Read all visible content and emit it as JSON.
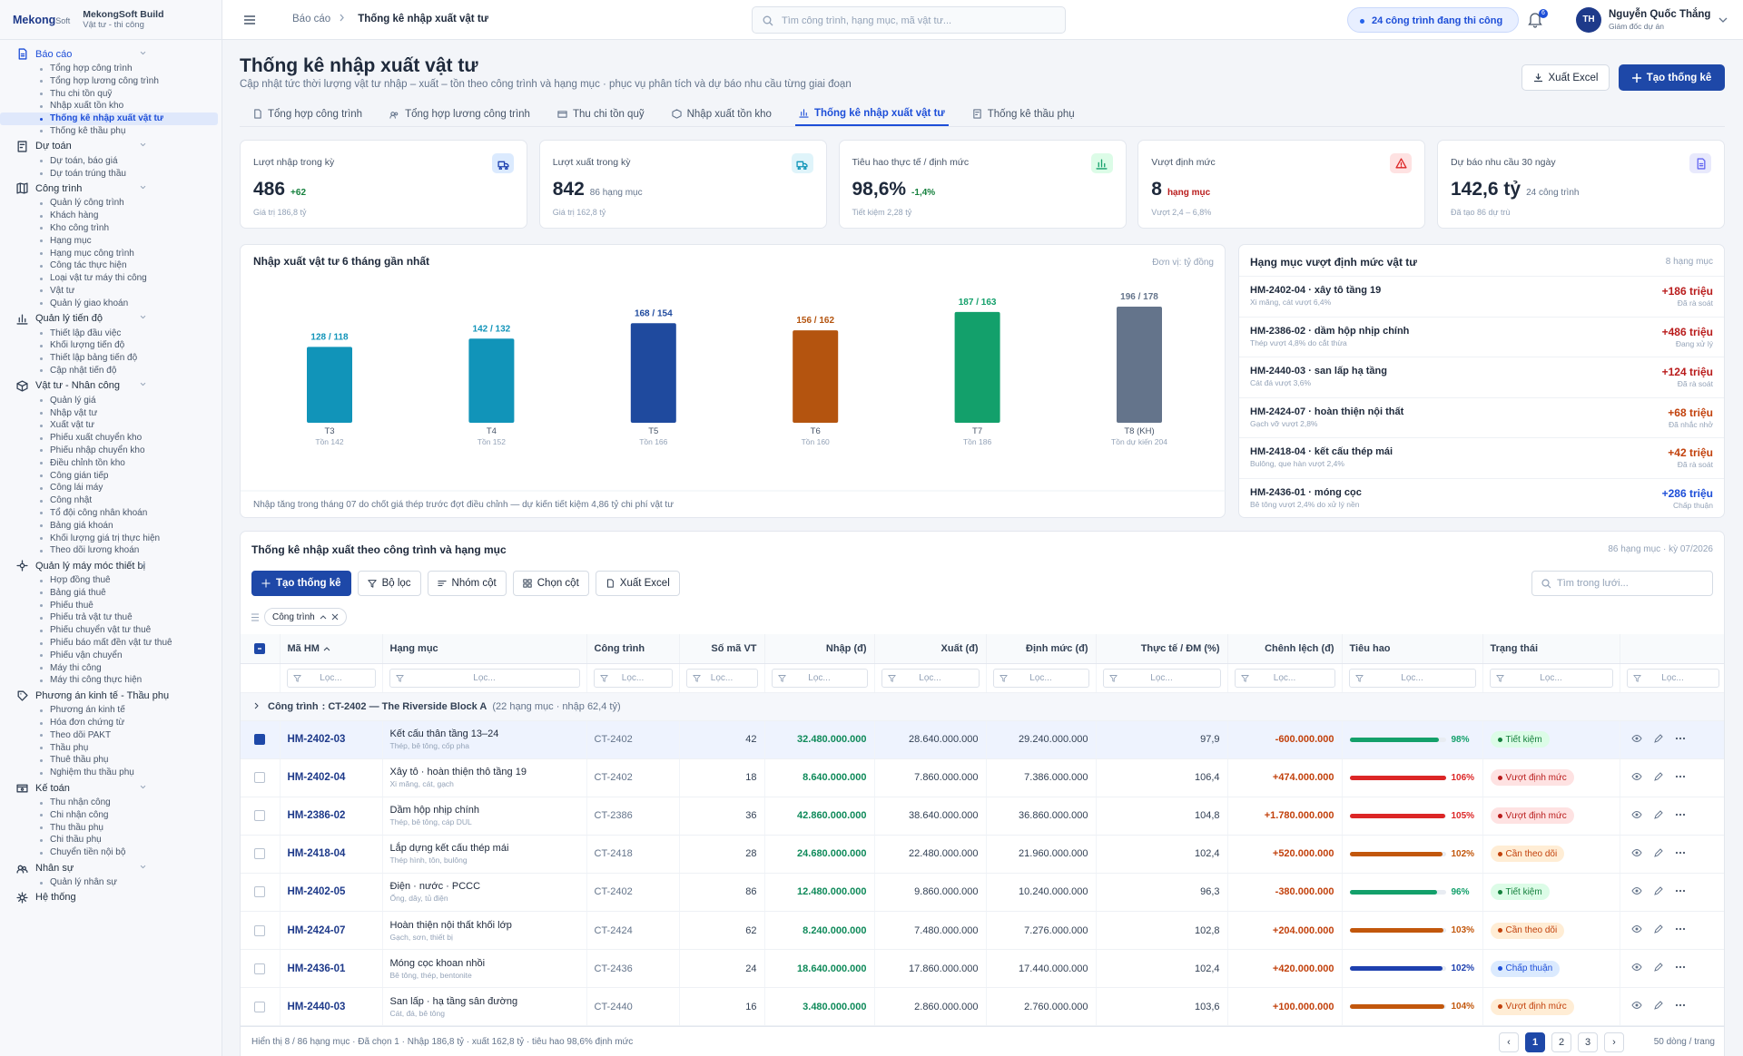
{
  "brand": {
    "logo_1": "Mekong",
    "logo_2": "Soft",
    "app": "MekongSoft Build",
    "tagline": "Vật tư - thi công"
  },
  "sidebar": {
    "active_group": 0,
    "active_item": 4,
    "groups": [
      {
        "label": "Báo cáo",
        "items": [
          "Tổng hợp công trình",
          "Tổng hợp lương công trình",
          "Thu chi tồn quỹ",
          "Nhập xuất tồn kho",
          "Thống kê nhập xuất vật tư",
          "Thống kê thầu phụ"
        ]
      },
      {
        "label": "Dự toán",
        "items": [
          "Dự toán, báo giá",
          "Dự toán trúng thầu"
        ]
      },
      {
        "label": "Công trình",
        "items": [
          "Quản lý công trình",
          "Khách hàng",
          "Kho công trình",
          "Hạng mục",
          "Hạng mục công trình",
          "Công tác thực hiện",
          "Loại vật tư máy thi công",
          "Vật tư",
          "Quản lý giao khoán"
        ]
      },
      {
        "label": "Quản lý tiến độ",
        "items": [
          "Thiết lập đầu việc",
          "Khối lượng tiến độ",
          "Thiết lập bảng tiến độ",
          "Cập nhật tiến độ"
        ]
      },
      {
        "label": "Vật tư - Nhân công",
        "items": [
          "Quản lý giá",
          "Nhập vật tư",
          "Xuất vật tư",
          "Phiếu xuất chuyển kho",
          "Phiếu nhập chuyển kho",
          "Điều chỉnh tồn kho",
          "Công gián tiếp",
          "Công lái máy",
          "Công nhật",
          "Tổ đội công nhân khoán",
          "Bảng giá khoán",
          "Khối lượng giá trị thực hiện",
          "Theo dõi lương khoán"
        ]
      },
      {
        "label": "Quản lý máy móc thiết bị",
        "items": [
          "Hợp đồng thuê",
          "Bảng giá thuê",
          "Phiếu thuê",
          "Phiếu trả vật tư thuê",
          "Phiếu chuyển vật tư thuê",
          "Phiếu báo mất đền vật tư thuê",
          "Phiếu vận chuyển",
          "Máy thi công",
          "Máy thi công thực hiện"
        ]
      },
      {
        "label": "Phương án kinh tế - Thầu phụ",
        "items": [
          "Phương án kinh tế",
          "Hóa đơn chứng từ",
          "Theo dõi PAKT",
          "Thầu phụ",
          "Thuê thầu phụ",
          "Nghiệm thu thầu phụ"
        ]
      },
      {
        "label": "Kế toán",
        "items": [
          "Thu nhận công",
          "Chi nhận công",
          "Thu thầu phụ",
          "Chi thầu phụ",
          "Chuyển tiền nội bộ"
        ]
      },
      {
        "label": "Nhân sự",
        "items": [
          "Quản lý nhân sự"
        ]
      },
      {
        "label": "Hệ thống",
        "items": []
      }
    ]
  },
  "topbar": {
    "breadcrumb_root": "Báo cáo",
    "breadcrumb_current": "Thống kê nhập xuất vật tư",
    "search_placeholder": "Tìm công trình, hạng mục, mã vật tư...",
    "status": "24 công trình đang thi công",
    "notifications": "6",
    "user_initials": "TH",
    "user_name": "Nguyễn Quốc Thắng",
    "user_role": "Giám đốc dự án"
  },
  "header": {
    "title": "Thống kê nhập xuất vật tư",
    "subtitle": "Cập nhật tức thời lượng vật tư nhập – xuất – tồn theo công trình và hạng mục · phục vụ phân tích và dự báo nhu cầu từng giai đoạn",
    "export": "Xuất Excel",
    "create": "Tạo thống kê"
  },
  "tabs": {
    "active": 4,
    "items": [
      "Tổng hợp công trình",
      "Tổng hợp lương công trình",
      "Thu chi tồn quỹ",
      "Nhập xuất tồn kho",
      "Thống kê nhập xuất vật tư",
      "Thống kê thầu phụ"
    ]
  },
  "kpis": [
    {
      "label": "Lượt nhập trong kỳ",
      "value": "486",
      "extra": "+62",
      "note": "Giá trị 186,8 tỷ",
      "tone": "blue",
      "extra_tone": "green"
    },
    {
      "label": "Lượt xuất trong kỳ",
      "value": "842",
      "extra": "86 hạng mục",
      "note": "Giá trị 162,8 tỷ",
      "tone": "teal",
      "extra_tone": "gray"
    },
    {
      "label": "Tiêu hao thực tế / định mức",
      "value": "98,6%",
      "extra": "-1,4%",
      "note": "Tiết kiệm 2,28 tỷ",
      "tone": "green",
      "extra_tone": "green"
    },
    {
      "label": "Vượt định mức",
      "value": "8",
      "extra": "hạng mục",
      "note": "Vượt 2,4 – 6,8%",
      "tone": "red",
      "extra_tone": "red"
    },
    {
      "label": "Dự báo nhu cầu 30 ngày",
      "value": "142,6 tỷ",
      "extra": "24 công trình",
      "note": "Đã tạo 86 dự trù",
      "tone": "purple",
      "extra_tone": "gray"
    }
  ],
  "chart_data": {
    "type": "bar",
    "title": "Nhập xuất vật tư 6 tháng gần nhất",
    "unit_note": "Đơn vị: tỷ đồng",
    "categories": [
      "T3",
      "T4",
      "T5",
      "T6",
      "T7",
      "T8 (KH)"
    ],
    "sublabels": [
      "Tồn 142",
      "Tồn 152",
      "Tồn 166",
      "Tồn 160",
      "Tồn 186",
      "Tồn dự kiến 204"
    ],
    "values": [
      128,
      142,
      168,
      156,
      187,
      196
    ],
    "value_labels": [
      "128 / 118",
      "142 / 132",
      "168 / 154",
      "156 / 162",
      "187 / 163",
      "196 / 178"
    ],
    "colors": [
      "#1194b9",
      "#1194b9",
      "#1f4a9e",
      "#b4540f",
      "#13a06b",
      "#64748b"
    ],
    "footnote": "Nhập tăng trong tháng 07 do chốt giá thép trước đợt điều chỉnh — dự kiến tiết kiệm 4,86 tỷ chi phí vật tư"
  },
  "overruns": {
    "title": "Hạng mục vượt định mức vật tư",
    "count": "8 hạng mục",
    "items": [
      {
        "title": "HM-2402-04 · xây tô tầng 19",
        "detail": "Xi măng, cát vượt 6,4%",
        "amount": "+186 triệu",
        "status": "Đã rà soát",
        "tone": "red"
      },
      {
        "title": "HM-2386-02 · dầm hộp nhịp chính",
        "detail": "Thép vượt 4,8% do cắt thừa",
        "amount": "+486 triệu",
        "status": "Đang xử lý",
        "tone": "red"
      },
      {
        "title": "HM-2440-03 · san lấp hạ tầng",
        "detail": "Cát đá vượt 3,6%",
        "amount": "+124 triệu",
        "status": "Đã rà soát",
        "tone": "red"
      },
      {
        "title": "HM-2424-07 · hoàn thiện nội thất",
        "detail": "Gạch vỡ vượt 2,8%",
        "amount": "+68 triệu",
        "status": "Đã nhắc nhở",
        "tone": "orange"
      },
      {
        "title": "HM-2418-04 · kết cấu thép mái",
        "detail": "Bulông, que hàn vượt 2,4%",
        "amount": "+42 triệu",
        "status": "Đã rà soát",
        "tone": "orange"
      },
      {
        "title": "HM-2436-01 · móng cọc",
        "detail": "Bê tông vượt 2,4% do xử lý nền",
        "amount": "+286 triệu",
        "status": "Chấp thuận",
        "tone": "blue"
      }
    ]
  },
  "table": {
    "title": "Thống kê nhập xuất theo công trình và hạng mục",
    "meta": "86 hạng mục · kỳ 07/2026",
    "toolbar": [
      "Tạo thống kê",
      "Bộ lọc",
      "Nhóm cột",
      "Chọn cột",
      "Xuất Excel"
    ],
    "search": "Tìm trong lưới...",
    "group_chip": "Công trình",
    "columns": [
      "Mã HM",
      "Hạng mục",
      "Công trình",
      "Số mã VT",
      "Nhập (đ)",
      "Xuất (đ)",
      "Định mức (đ)",
      "Thực tế / ĐM (%)",
      "Chênh lệch (đ)",
      "Tiêu hao",
      "Trạng thái"
    ],
    "filter_placeholder": "Lọc...",
    "group_row": {
      "label": "Công trình",
      "value": ": CT-2402 — The Riverside Block A",
      "meta": "(22 hạng mục · nhập 62,4 tỷ)"
    },
    "rows": [
      {
        "code": "HM-2402-03",
        "name": "Kết cấu thân tầng 13–24",
        "materials": "Thép, bê tông, cốp pha",
        "project": "CT-2402",
        "items": "42",
        "import": "32.480.000.000",
        "export": "28.640.000.000",
        "norm": "29.240.000.000",
        "ratio": "97,9",
        "diff": "-600.000.000",
        "usage": 98,
        "usage_label": "98%",
        "status": "Tiết kiệm",
        "tone": "green",
        "selected": true
      },
      {
        "code": "HM-2402-04",
        "name": "Xây tô · hoàn thiện thô tầng 19",
        "materials": "Xi măng, cát, gạch",
        "project": "CT-2402",
        "items": "18",
        "import": "8.640.000.000",
        "export": "7.860.000.000",
        "norm": "7.386.000.000",
        "ratio": "106,4",
        "diff": "+474.000.000",
        "usage": 106,
        "usage_label": "106%",
        "status": "Vượt định mức",
        "tone": "red",
        "selected": false
      },
      {
        "code": "HM-2386-02",
        "name": "Dầm hộp nhịp chính",
        "materials": "Thép, bê tông, cáp DUL",
        "project": "CT-2386",
        "items": "36",
        "import": "42.860.000.000",
        "export": "38.640.000.000",
        "norm": "36.860.000.000",
        "ratio": "104,8",
        "diff": "+1.780.000.000",
        "usage": 105,
        "usage_label": "105%",
        "status": "Vượt định mức",
        "tone": "red",
        "selected": false
      },
      {
        "code": "HM-2418-04",
        "name": "Lắp dựng kết cấu thép mái",
        "materials": "Thép hình, tôn, bulông",
        "project": "CT-2418",
        "items": "28",
        "import": "24.680.000.000",
        "export": "22.480.000.000",
        "norm": "21.960.000.000",
        "ratio": "102,4",
        "diff": "+520.000.000",
        "usage": 102,
        "usage_label": "102%",
        "status": "Cần theo dõi",
        "tone": "orange",
        "selected": false
      },
      {
        "code": "HM-2402-05",
        "name": "Điện · nước · PCCC",
        "materials": "Ống, dây, tủ điện",
        "project": "CT-2402",
        "items": "86",
        "import": "12.480.000.000",
        "export": "9.860.000.000",
        "norm": "10.240.000.000",
        "ratio": "96,3",
        "diff": "-380.000.000",
        "usage": 96,
        "usage_label": "96%",
        "status": "Tiết kiệm",
        "tone": "green",
        "selected": false
      },
      {
        "code": "HM-2424-07",
        "name": "Hoàn thiện nội thất khối lớp",
        "materials": "Gạch, sơn, thiết bị",
        "project": "CT-2424",
        "items": "62",
        "import": "8.240.000.000",
        "export": "7.480.000.000",
        "norm": "7.276.000.000",
        "ratio": "102,8",
        "diff": "+204.000.000",
        "usage": 103,
        "usage_label": "103%",
        "status": "Cần theo dõi",
        "tone": "orange",
        "selected": false
      },
      {
        "code": "HM-2436-01",
        "name": "Móng cọc khoan nhồi",
        "materials": "Bê tông, thép, bentonite",
        "project": "CT-2436",
        "items": "24",
        "import": "18.640.000.000",
        "export": "17.860.000.000",
        "norm": "17.440.000.000",
        "ratio": "102,4",
        "diff": "+420.000.000",
        "usage": 102,
        "usage_label": "102%",
        "status": "Chấp thuận",
        "tone": "blue",
        "selected": false
      },
      {
        "code": "HM-2440-03",
        "name": "San lấp · hạ tầng sân đường",
        "materials": "Cát, đá, bê tông",
        "project": "CT-2440",
        "items": "16",
        "import": "3.480.000.000",
        "export": "2.860.000.000",
        "norm": "2.760.000.000",
        "ratio": "103,6",
        "diff": "+100.000.000",
        "usage": 104,
        "usage_label": "104%",
        "status": "Vượt định mức",
        "tone": "orange",
        "selected": false
      }
    ],
    "footer": {
      "summary": "Hiển thị 8 / 86 hạng mục · Đã chọn 1 · Nhập 186,8 tỷ · xuất 162,8 tỷ · tiêu hao 98,6% định mức",
      "prev": "‹",
      "pages": [
        "1",
        "2",
        "3"
      ],
      "next": "›",
      "active_page": 0,
      "page_size": "50 dòng / trang"
    }
  }
}
